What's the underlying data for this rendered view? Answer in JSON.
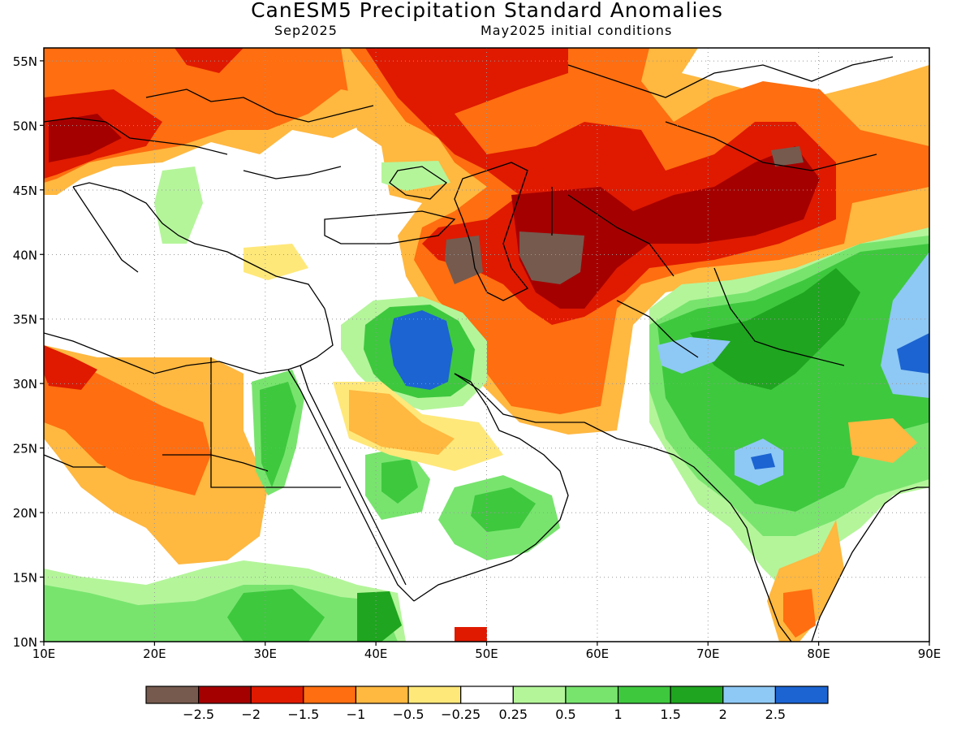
{
  "header": {
    "title": "CanESM5 Precipitation Standard Anomalies",
    "subtitle_left": "Sep2025",
    "subtitle_right": "May2025 initial conditions"
  },
  "map": {
    "lon_range": [
      10,
      90
    ],
    "lat_range": [
      10,
      56
    ],
    "lon_ticks": [
      "10E",
      "20E",
      "30E",
      "40E",
      "50E",
      "60E",
      "70E",
      "80E",
      "90E"
    ],
    "lat_ticks": [
      "55N",
      "50N",
      "45N",
      "40N",
      "35N",
      "30N",
      "25N",
      "20N",
      "15N",
      "10N"
    ],
    "gridlines": "dotted"
  },
  "colorbar": {
    "colors": [
      "#765a4e",
      "#a50000",
      "#df1a00",
      "#ff6e10",
      "#ffb840",
      "#ffe87a",
      "#ffffff",
      "#b4f59a",
      "#78e46e",
      "#3ec83e",
      "#1fa51f",
      "#8ec8f5",
      "#1b64d2"
    ],
    "labels": [
      "−2.5",
      "−2",
      "−1.5",
      "−1",
      "−0.5",
      "−0.25",
      "0.25",
      "0.5",
      "1",
      "1.5",
      "2",
      "2.5"
    ]
  }
}
